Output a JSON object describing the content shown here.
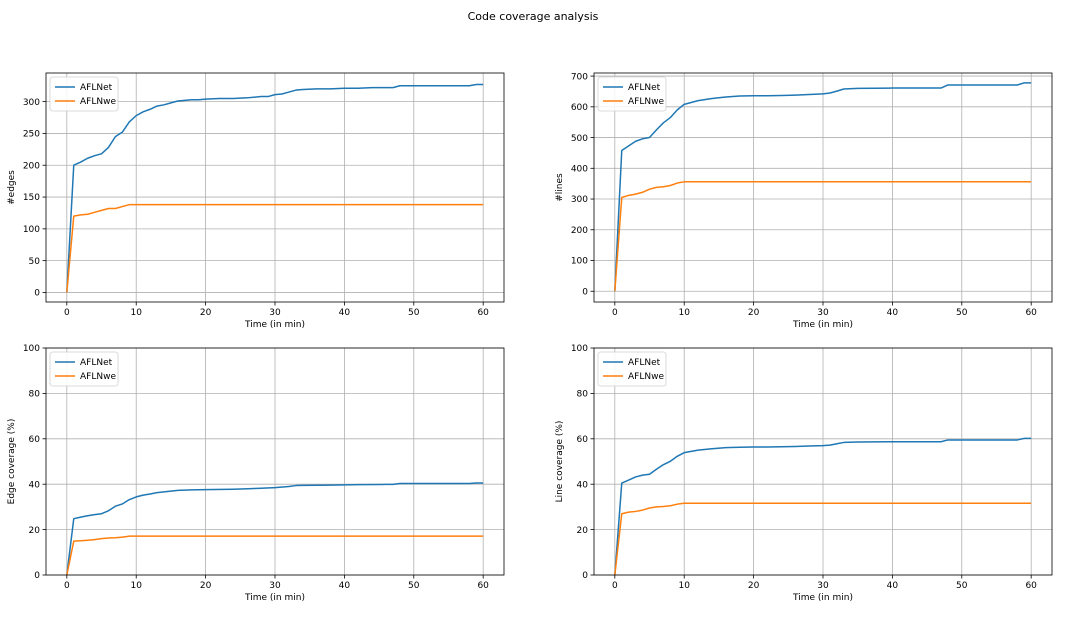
{
  "figure": {
    "title": "Code coverage analysis"
  },
  "colors": {
    "AFLNet": "#1f77b4",
    "AFLNwe": "#ff7f0e",
    "grid": "#b0b0b0",
    "axes": "#000000"
  },
  "chart_data": [
    {
      "type": "line",
      "title": "",
      "xlabel": "Time (in min)",
      "ylabel": "#edges",
      "xlim": [
        -3,
        63
      ],
      "ylim": [
        -15,
        345
      ],
      "xticks": [
        0,
        10,
        20,
        30,
        40,
        50,
        60
      ],
      "yticks": [
        0,
        50,
        100,
        150,
        200,
        250,
        300
      ],
      "grid": true,
      "legend": "top-left",
      "series": [
        {
          "name": "AFLNet",
          "color": "#1f77b4",
          "x": [
            0,
            1,
            2,
            3,
            4,
            5,
            6,
            7,
            8,
            9,
            10,
            11,
            12,
            13,
            14,
            15,
            16,
            17,
            18,
            19,
            20,
            22,
            24,
            26,
            28,
            29,
            30,
            31,
            32,
            33,
            34,
            36,
            38,
            40,
            42,
            44,
            46,
            47,
            48,
            50,
            52,
            54,
            56,
            58,
            59,
            60
          ],
          "y": [
            0,
            200,
            205,
            211,
            215,
            218,
            228,
            245,
            252,
            268,
            278,
            284,
            288,
            293,
            295,
            298,
            301,
            302,
            303,
            303,
            304,
            305,
            305,
            306,
            308,
            308,
            311,
            312,
            315,
            318,
            319,
            320,
            320,
            321,
            321,
            322,
            322,
            322,
            325,
            325,
            325,
            325,
            325,
            325,
            327,
            327
          ]
        },
        {
          "name": "AFLNwe",
          "color": "#ff7f0e",
          "x": [
            0,
            1,
            2,
            3,
            4,
            5,
            6,
            7,
            8,
            9,
            10,
            60
          ],
          "y": [
            0,
            120,
            122,
            123,
            126,
            129,
            132,
            132,
            135,
            138,
            138,
            138
          ]
        }
      ]
    },
    {
      "type": "line",
      "title": "",
      "xlabel": "Time (in min)",
      "ylabel": "#lines",
      "xlim": [
        -3,
        63
      ],
      "ylim": [
        -35,
        710
      ],
      "xticks": [
        0,
        10,
        20,
        30,
        40,
        50,
        60
      ],
      "yticks": [
        0,
        100,
        200,
        300,
        400,
        500,
        600,
        700
      ],
      "grid": true,
      "legend": "top-left",
      "series": [
        {
          "name": "AFLNet",
          "color": "#1f77b4",
          "x": [
            0,
            1,
            2,
            3,
            4,
            5,
            6,
            7,
            8,
            9,
            10,
            12,
            14,
            16,
            18,
            20,
            22,
            24,
            26,
            28,
            30,
            31,
            32,
            33,
            35,
            40,
            45,
            47,
            48,
            50,
            55,
            58,
            59,
            60
          ],
          "y": [
            0,
            458,
            473,
            488,
            496,
            500,
            525,
            548,
            565,
            590,
            608,
            620,
            627,
            632,
            635,
            636,
            636,
            637,
            638,
            640,
            642,
            645,
            651,
            658,
            660,
            661,
            661,
            661,
            671,
            671,
            671,
            671,
            678,
            678
          ]
        },
        {
          "name": "AFLNwe",
          "color": "#ff7f0e",
          "x": [
            0,
            1,
            2,
            3,
            4,
            5,
            6,
            7,
            8,
            9,
            10,
            60
          ],
          "y": [
            0,
            305,
            312,
            316,
            322,
            332,
            338,
            340,
            344,
            352,
            356,
            356
          ]
        }
      ]
    },
    {
      "type": "line",
      "title": "",
      "xlabel": "Time (in min)",
      "ylabel": "Edge coverage (%)",
      "xlim": [
        -3,
        63
      ],
      "ylim": [
        0,
        100
      ],
      "xticks": [
        0,
        10,
        20,
        30,
        40,
        50,
        60
      ],
      "yticks": [
        0,
        20,
        40,
        60,
        80,
        100
      ],
      "grid": true,
      "legend": "top-left",
      "series": [
        {
          "name": "AFLNet",
          "color": "#1f77b4",
          "x": [
            0,
            1,
            2,
            3,
            4,
            5,
            6,
            7,
            8,
            9,
            10,
            11,
            12,
            13,
            14,
            16,
            18,
            20,
            24,
            28,
            30,
            32,
            33,
            34,
            38,
            42,
            46,
            47,
            48,
            56,
            58,
            59,
            60
          ],
          "y": [
            0,
            24.8,
            25.5,
            26.1,
            26.6,
            27,
            28.3,
            30.3,
            31.3,
            33.2,
            34.4,
            35.2,
            35.7,
            36.3,
            36.6,
            37.3,
            37.5,
            37.6,
            37.8,
            38.2,
            38.5,
            39,
            39.4,
            39.5,
            39.6,
            39.8,
            39.9,
            39.9,
            40.3,
            40.3,
            40.3,
            40.5,
            40.5
          ]
        },
        {
          "name": "AFLNwe",
          "color": "#ff7f0e",
          "x": [
            0,
            1,
            2,
            3,
            4,
            5,
            6,
            7,
            8,
            9,
            10,
            60
          ],
          "y": [
            0,
            14.9,
            15.1,
            15.3,
            15.6,
            16,
            16.3,
            16.4,
            16.7,
            17.1,
            17.1,
            17.1
          ]
        }
      ]
    },
    {
      "type": "line",
      "title": "",
      "xlabel": "Time (in min)",
      "ylabel": "Line coverage (%)",
      "xlim": [
        -3,
        63
      ],
      "ylim": [
        0,
        100
      ],
      "xticks": [
        0,
        10,
        20,
        30,
        40,
        50,
        60
      ],
      "yticks": [
        0,
        20,
        40,
        60,
        80,
        100
      ],
      "grid": true,
      "legend": "top-left",
      "series": [
        {
          "name": "AFLNet",
          "color": "#1f77b4",
          "x": [
            0,
            1,
            2,
            3,
            4,
            5,
            6,
            7,
            8,
            9,
            10,
            12,
            14,
            16,
            18,
            20,
            22,
            24,
            26,
            28,
            30,
            31,
            32,
            33,
            35,
            40,
            45,
            47,
            48,
            50,
            55,
            58,
            59,
            60
          ],
          "y": [
            0,
            40.5,
            41.8,
            43.2,
            44,
            44.4,
            46.6,
            48.6,
            50.1,
            52.3,
            53.9,
            55,
            55.6,
            56.1,
            56.3,
            56.4,
            56.4,
            56.5,
            56.6,
            56.8,
            57,
            57.2,
            57.8,
            58.4,
            58.6,
            58.7,
            58.7,
            58.7,
            59.5,
            59.5,
            59.5,
            59.5,
            60.2,
            60.2
          ]
        },
        {
          "name": "AFLNwe",
          "color": "#ff7f0e",
          "x": [
            0,
            1,
            2,
            3,
            4,
            5,
            6,
            7,
            8,
            9,
            10,
            60
          ],
          "y": [
            0,
            27,
            27.7,
            28,
            28.6,
            29.5,
            30,
            30.2,
            30.5,
            31.2,
            31.6,
            31.6
          ]
        }
      ]
    }
  ]
}
